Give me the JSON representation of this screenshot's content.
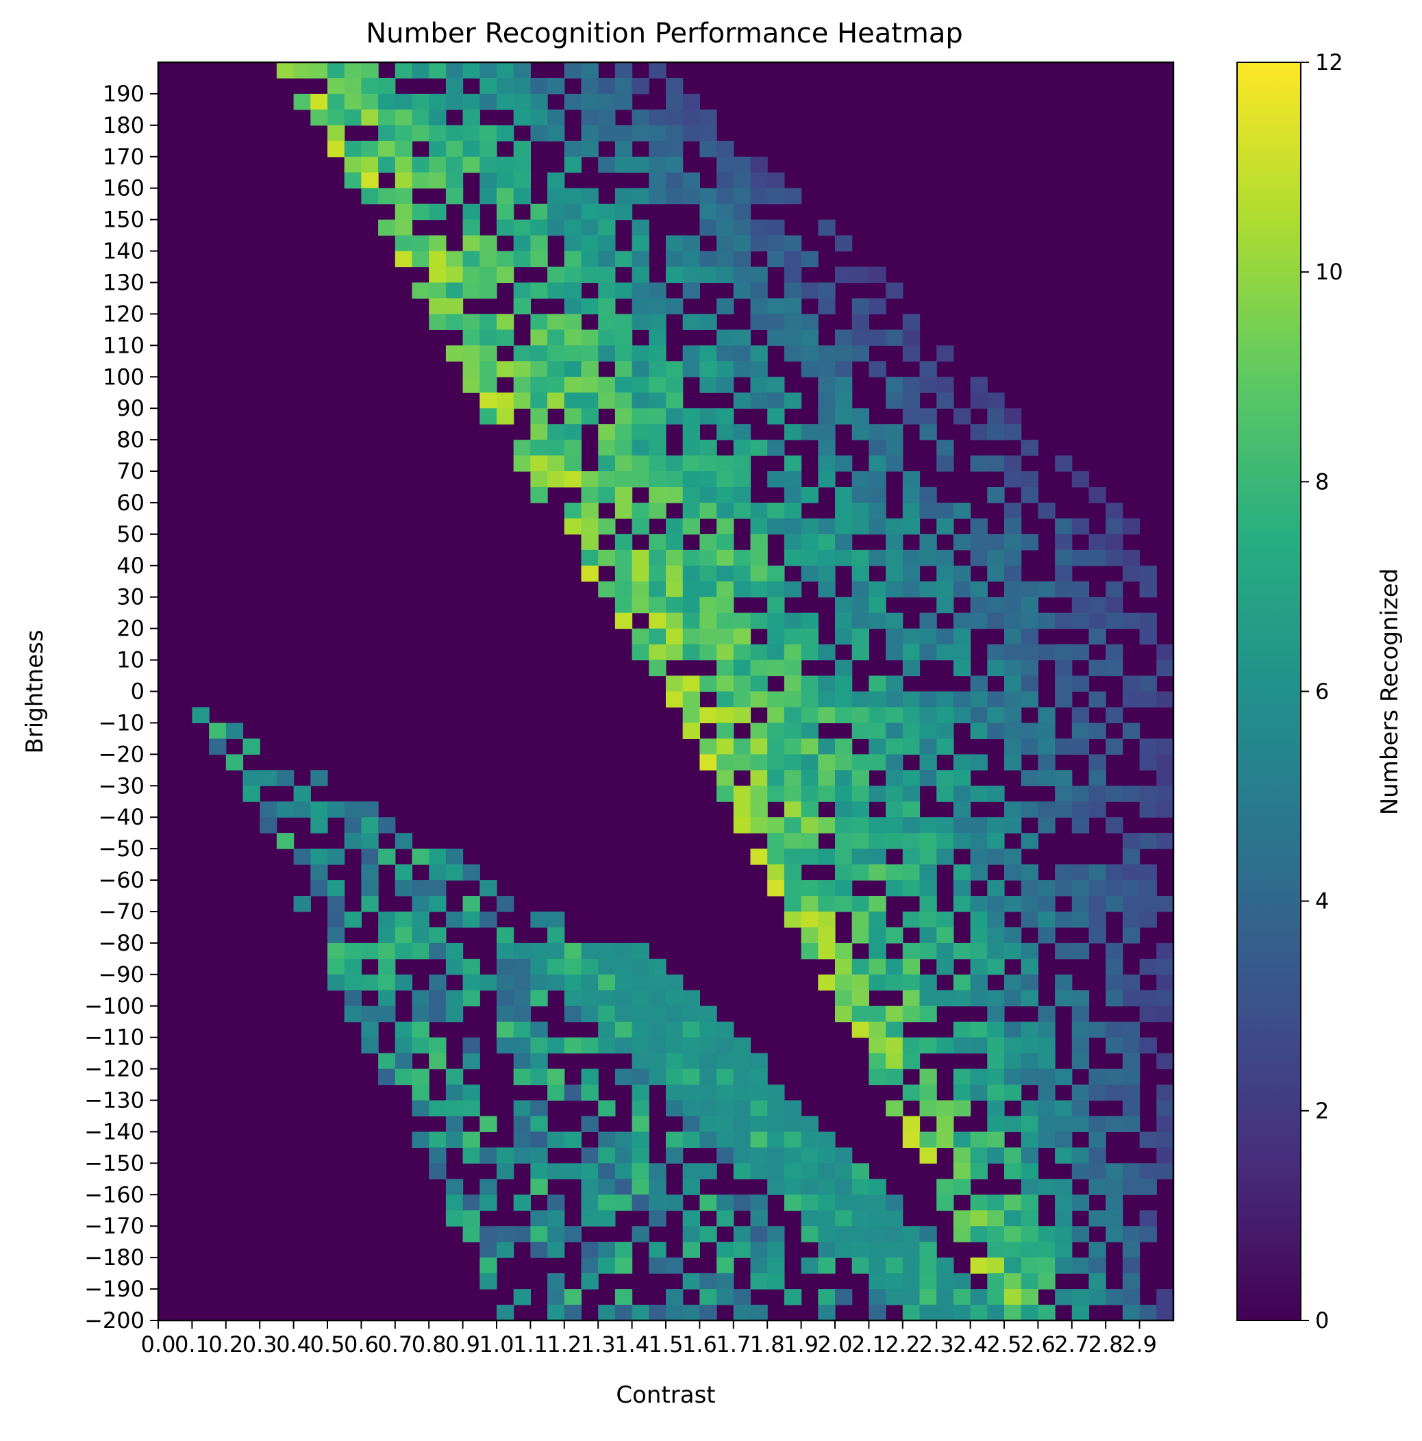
{
  "chart_data": {
    "type": "heatmap",
    "title": "Number Recognition Performance Heatmap",
    "xlabel": "Contrast",
    "ylabel": "Brightness",
    "x_range": [
      0.0,
      3.0
    ],
    "y_range": [
      -200,
      200
    ],
    "x_bin_width": 0.05,
    "y_bin_width": 5,
    "x_tick_labels": [
      "0.0",
      "0.1",
      "0.2",
      "0.3",
      "0.4",
      "0.5",
      "0.6",
      "0.7",
      "0.8",
      "0.9",
      "1.0",
      "1.1",
      "1.2",
      "1.3",
      "1.4",
      "1.5",
      "1.6",
      "1.7",
      "1.8",
      "1.9",
      "2.0",
      "2.1",
      "2.2",
      "2.3",
      "2.4",
      "2.5",
      "2.6",
      "2.7",
      "2.8",
      "2.9"
    ],
    "y_tick_labels": [
      "190",
      "180",
      "170",
      "160",
      "150",
      "140",
      "130",
      "120",
      "110",
      "100",
      "90",
      "80",
      "70",
      "60",
      "50",
      "40",
      "30",
      "20",
      "10",
      "0",
      "-10",
      "-20",
      "-30",
      "-40",
      "-50",
      "-60",
      "-70",
      "-80",
      "-90",
      "-100",
      "-110",
      "-120",
      "-130",
      "-140",
      "-150",
      "-160",
      "-170",
      "-180",
      "-190",
      "-200"
    ],
    "colorbar": {
      "label": "Numbers Recognized",
      "range": [
        0,
        12
      ],
      "tick_labels": [
        "0",
        "2",
        "4",
        "6",
        "8",
        "10",
        "12"
      ],
      "colormap": "viridis"
    },
    "bands": [
      {
        "region": "upper",
        "y_values": [
          200,
          150,
          100,
          50,
          0,
          -50,
          -100,
          -150,
          -200
        ],
        "x_start": [
          0.35,
          0.65,
          0.9,
          1.2,
          1.5,
          1.75,
          2.0,
          2.25,
          2.5
        ],
        "x_end": [
          1.5,
          2.0,
          2.4,
          2.9,
          3.0,
          3.0,
          3.0,
          3.0,
          3.0
        ],
        "peak_value": 10
      },
      {
        "region": "lower",
        "y_values": [
          -5,
          -50,
          -100,
          -150,
          -200
        ],
        "x_start": [
          0.05,
          0.35,
          0.55,
          0.8,
          1.0
        ],
        "x_end": [
          0.1,
          0.85,
          1.6,
          2.1,
          2.5
        ],
        "peak_value": 8
      },
      {
        "region": "diagonal-streak",
        "y_values": [
          -80,
          -200
        ],
        "x_start": [
          1.05,
          2.2
        ],
        "x_end": [
          1.45,
          2.5
        ],
        "value": 6
      }
    ]
  }
}
